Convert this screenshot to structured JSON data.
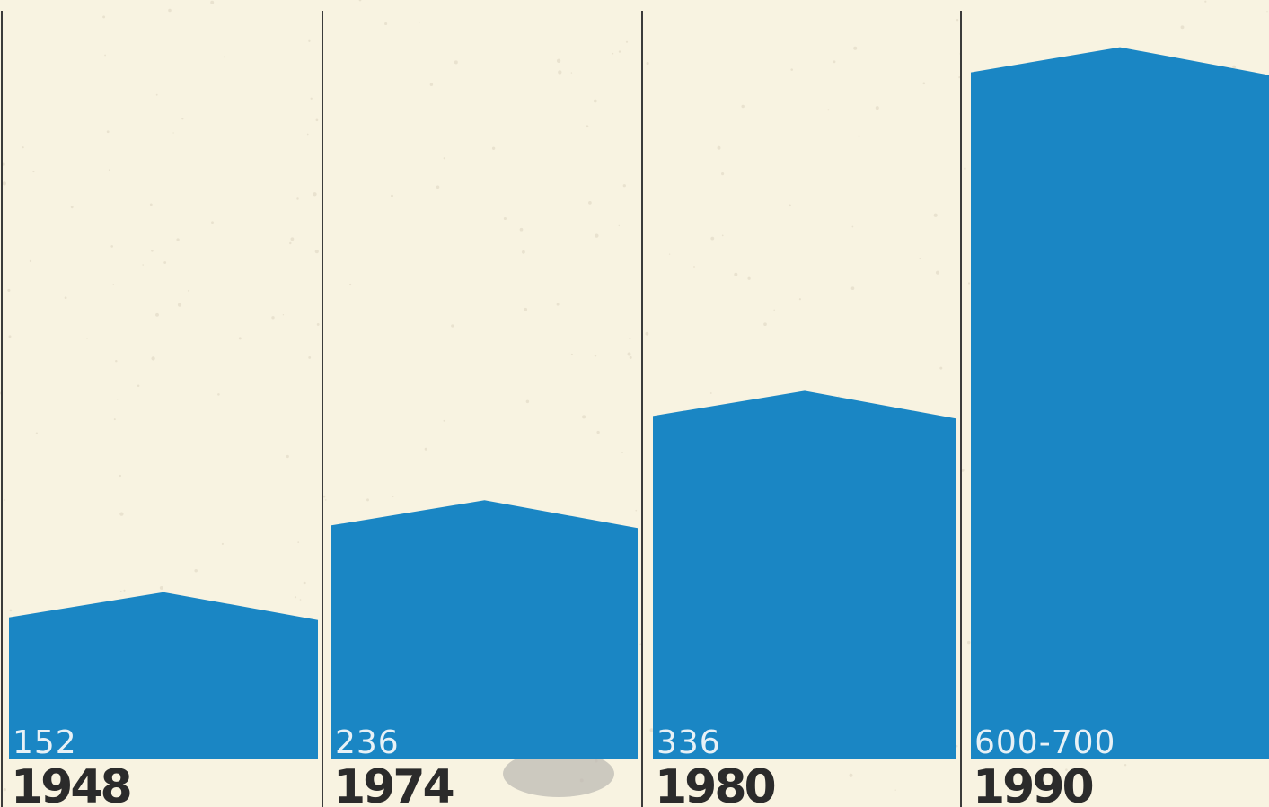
{
  "chart_data": {
    "type": "bar",
    "title": "",
    "xlabel": "",
    "ylabel": "",
    "categories": [
      "1948",
      "1974",
      "1980",
      "1990"
    ],
    "values": [
      152,
      236,
      336,
      650
    ],
    "value_labels": [
      "152",
      "236",
      "336",
      "600-700"
    ],
    "ylim": [
      0,
      680
    ],
    "grid": false,
    "legend": "none",
    "colors": {
      "bar": "#1a86c4",
      "background": "#f8f3e1",
      "divider": "#3b3b3b",
      "value_text": "#e8f1f6",
      "year_text": "#2b2b2b"
    }
  }
}
